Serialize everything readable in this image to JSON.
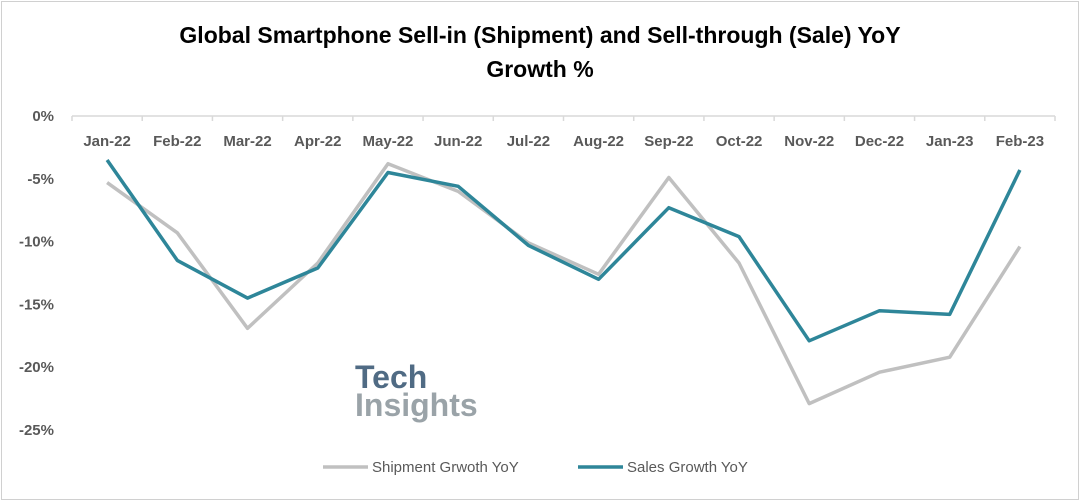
{
  "chart_data": {
    "type": "line",
    "title": "Global Smartphone Sell-in (Shipment) and Sell-through (Sale) YoY Growth %",
    "title_lines": [
      "Global Smartphone Sell-in (Shipment) and Sell-through (Sale) YoY",
      "Growth %"
    ],
    "categories": [
      "Jan-22",
      "Feb-22",
      "Mar-22",
      "Apr-22",
      "May-22",
      "Jun-22",
      "Jul-22",
      "Aug-22",
      "Sep-22",
      "Oct-22",
      "Nov-22",
      "Dec-22",
      "Jan-23",
      "Feb-23"
    ],
    "ylim": [
      -25,
      0
    ],
    "yticks": [
      "0%",
      "-5%",
      "-10%",
      "-15%",
      "-20%",
      "-25%"
    ],
    "ytick_values": [
      0,
      -5,
      -10,
      -15,
      -20,
      -25
    ],
    "grid": false,
    "legend_position": "bottom",
    "series": [
      {
        "name": "Shipment Grwoth YoY",
        "color": "#c0c0c0",
        "values": [
          -5.3,
          -9.3,
          -16.9,
          -11.7,
          -3.8,
          -6.0,
          -10.1,
          -12.6,
          -4.9,
          -11.7,
          -22.9,
          -20.4,
          -19.2,
          -10.4
        ]
      },
      {
        "name": "Sales Growth YoY",
        "color": "#2e8699",
        "values": [
          -3.5,
          -11.5,
          -14.5,
          -12.1,
          -4.5,
          -5.6,
          -10.3,
          -13.0,
          -7.3,
          -9.6,
          -17.9,
          -15.5,
          -15.8,
          -4.3
        ]
      }
    ]
  },
  "watermark": {
    "line1": "Tech",
    "line2": "Insights"
  }
}
